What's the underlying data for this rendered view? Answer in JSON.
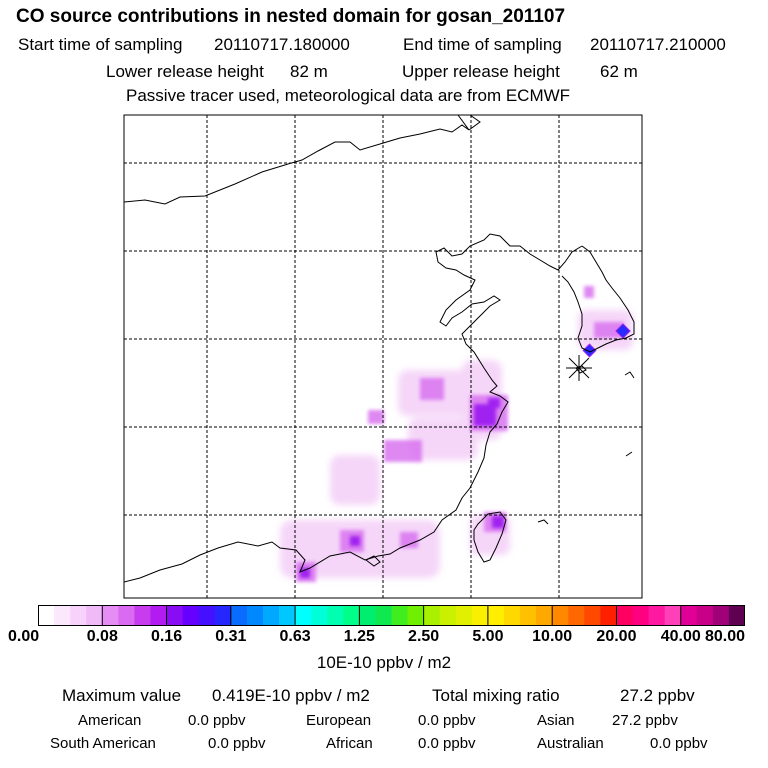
{
  "header": {
    "title": "CO  source contributions in nested domain for gosan_201107",
    "start_label": "Start time of sampling",
    "start_value": "20110717.180000",
    "end_label": "End time of sampling",
    "end_value": "20110717.210000",
    "lower_label": "Lower release height",
    "lower_value": "82 m",
    "upper_label": "Upper release height",
    "upper_value": "62 m",
    "note": "Passive tracer used, meteorological data are from ECMWF"
  },
  "colors": {
    "coast": "#000000",
    "grid": "#000000",
    "marker": "#000000",
    "plume_light": "#f2c8f6",
    "plume_mid": "#d975f0",
    "plume_dark": "#a020f0",
    "plume_blue": "#2a2aff"
  },
  "colorbar": {
    "ticks": [
      "0.00",
      "0.08",
      "0.16",
      "0.31",
      "0.63",
      "1.25",
      "2.50",
      "5.00",
      "10.00",
      "20.00",
      "40.00",
      "80.00"
    ],
    "colors": [
      "#ffffff",
      "#fbe8fd",
      "#f7d3fb",
      "#f0b9f8",
      "#e58df4",
      "#d96af1",
      "#c73cef",
      "#b21cf0",
      "#8a0cf5",
      "#6600ff",
      "#4410ff",
      "#2626ff",
      "#0a6cff",
      "#0088ff",
      "#00a8ff",
      "#00c8ff",
      "#00ffff",
      "#00ffd8",
      "#00ffb0",
      "#00ff88",
      "#00ee70",
      "#10e850",
      "#40ee20",
      "#70f000",
      "#a8f000",
      "#c8f000",
      "#e0f000",
      "#f8f000",
      "#ffee00",
      "#ffd800",
      "#ffc000",
      "#ffa800",
      "#ff8800",
      "#ff6800",
      "#ff4800",
      "#ff2000",
      "#ff0060",
      "#ff0080",
      "#ff18a0",
      "#ff40b8",
      "#e00098",
      "#c80088",
      "#a00078",
      "#600050"
    ],
    "unit": "10E-10 ppbv / m2"
  },
  "stats": {
    "max_label": "Maximum value",
    "max_value": "0.419E-10 ppbv / m2",
    "total_label": "Total mixing ratio",
    "total_value": "27.2 ppbv"
  },
  "regions": {
    "american_label": "American",
    "american_value": "0.0 ppbv",
    "european_label": "European",
    "european_value": "0.0 ppbv",
    "asian_label": "Asian",
    "asian_value": "27.2 ppbv",
    "south_american_label": "South American",
    "south_american_value": "0.0 ppbv",
    "african_label": "African",
    "african_value": "0.0 ppbv",
    "australian_label": "Australian",
    "australian_value": "0.0 ppbv"
  }
}
